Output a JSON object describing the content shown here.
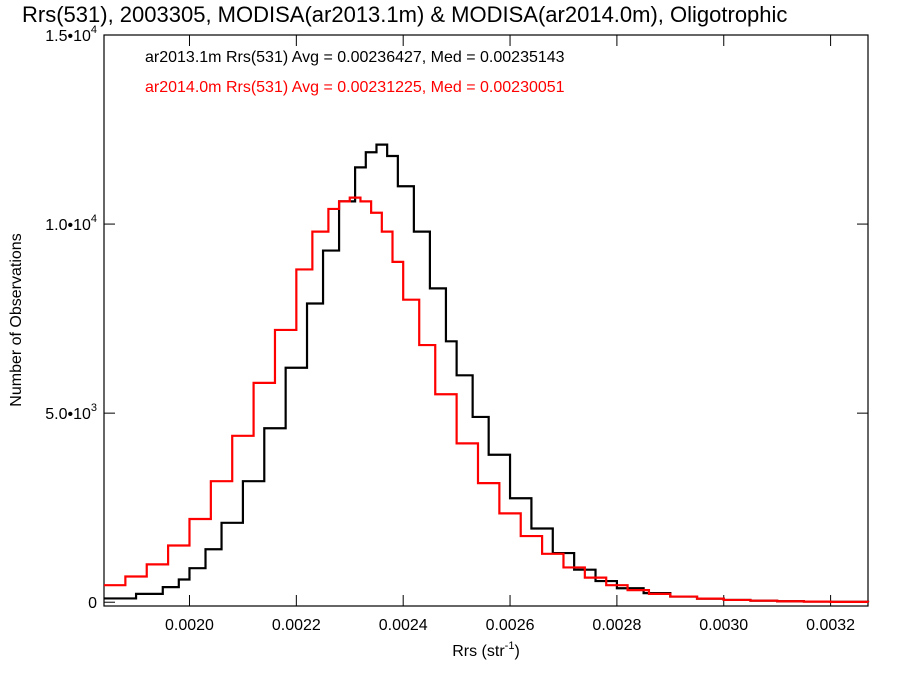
{
  "chart_data": {
    "type": "line",
    "title": "Rrs(531), 2003305, MODISA(ar2013.1m) & MODISA(ar2014.0m), Oligotrophic",
    "xlabel": "Rrs (str",
    "xlabel_sup": "-1",
    "xlabel_end": ")",
    "ylabel": "Number of Observations",
    "xlim": [
      0.00184,
      0.00327
    ],
    "ylim": [
      -100,
      15000
    ],
    "x_ticks": [
      {
        "value": 0.002,
        "label": "0.0020"
      },
      {
        "value": 0.0022,
        "label": "0.0022"
      },
      {
        "value": 0.0024,
        "label": "0.0024"
      },
      {
        "value": 0.0026,
        "label": "0.0026"
      },
      {
        "value": 0.0028,
        "label": "0.0028"
      },
      {
        "value": 0.003,
        "label": "0.0030"
      },
      {
        "value": 0.0032,
        "label": "0.0032"
      }
    ],
    "y_ticks": [
      {
        "value": 0,
        "label": "0",
        "exp": ""
      },
      {
        "value": 5000,
        "label": "5.0•10",
        "exp": "3"
      },
      {
        "value": 10000,
        "label": "1.0•10",
        "exp": "4"
      },
      {
        "value": 15000,
        "label": "1.5•10",
        "exp": "4"
      }
    ],
    "annotations": [
      {
        "text": "ar2013.1m Rrs(531) Avg = 0.00236427, Med = 0.00235143",
        "color": "#000000"
      },
      {
        "text": "ar2014.0m Rrs(531) Avg = 0.00231225, Med = 0.00230051",
        "color": "#ff0000"
      }
    ],
    "grid": false,
    "series": [
      {
        "color": "#000000",
        "x": [
          0.00184,
          0.0019,
          0.00195,
          0.00198,
          0.002,
          0.00203,
          0.00206,
          0.0021,
          0.00214,
          0.00218,
          0.00222,
          0.00225,
          0.00228,
          0.00231,
          0.00233,
          0.00235,
          0.00237,
          0.00239,
          0.00242,
          0.00245,
          0.00248,
          0.0025,
          0.00253,
          0.00256,
          0.0026,
          0.00264,
          0.00268,
          0.00272,
          0.00276,
          0.0028,
          0.00285,
          0.0029,
          0.00295,
          0.003,
          0.00305,
          0.0031,
          0.00315,
          0.0032,
          0.00327
        ],
        "y": [
          100,
          220,
          400,
          600,
          900,
          1400,
          2100,
          3200,
          4600,
          6200,
          7900,
          9300,
          10600,
          11500,
          11900,
          12100,
          11800,
          11000,
          9800,
          8300,
          6900,
          6000,
          4900,
          3900,
          2750,
          1950,
          1300,
          860,
          560,
          370,
          240,
          150,
          95,
          60,
          40,
          25,
          18,
          10,
          0
        ]
      },
      {
        "color": "#ff0000",
        "x": [
          0.00184,
          0.00188,
          0.00192,
          0.00196,
          0.002,
          0.00204,
          0.00208,
          0.00212,
          0.00216,
          0.0022,
          0.00223,
          0.00226,
          0.00228,
          0.0023,
          0.00232,
          0.00234,
          0.00236,
          0.00238,
          0.0024,
          0.00243,
          0.00246,
          0.0025,
          0.00254,
          0.00258,
          0.00262,
          0.00266,
          0.0027,
          0.00274,
          0.00278,
          0.00282,
          0.00286,
          0.0029,
          0.00295,
          0.003,
          0.00305,
          0.0031,
          0.00315,
          0.0032,
          0.00327
        ],
        "y": [
          450,
          680,
          1000,
          1500,
          2200,
          3200,
          4400,
          5800,
          7200,
          8800,
          9800,
          10400,
          10600,
          10700,
          10600,
          10300,
          9800,
          9000,
          8000,
          6800,
          5500,
          4200,
          3150,
          2350,
          1750,
          1280,
          920,
          650,
          450,
          320,
          220,
          150,
          95,
          60,
          40,
          25,
          15,
          10,
          0
        ]
      }
    ]
  }
}
